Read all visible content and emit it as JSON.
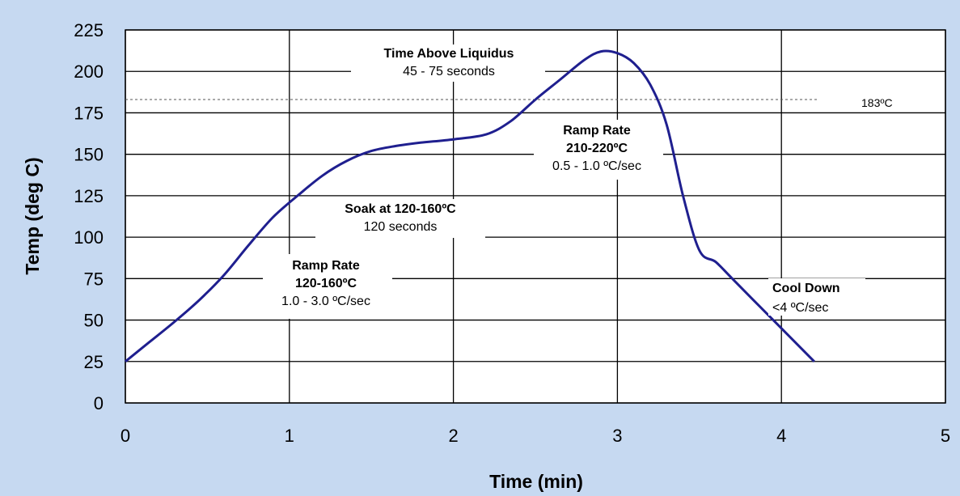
{
  "chart_data": {
    "type": "line",
    "xlabel": "Time (min)",
    "ylabel": "Temp (deg C)",
    "xlim": [
      0,
      5
    ],
    "ylim": [
      0,
      225
    ],
    "xticks": [
      "0",
      "1",
      "2",
      "3",
      "4",
      "5"
    ],
    "yticks": [
      "0",
      "25",
      "50",
      "75",
      "100",
      "125",
      "150",
      "175",
      "200",
      "225"
    ],
    "grid": true,
    "series": [
      {
        "color": "#1f1f8f",
        "x": [
          0,
          0.15,
          0.3,
          0.45,
          0.6,
          0.75,
          0.9,
          1.05,
          1.2,
          1.35,
          1.5,
          1.65,
          1.8,
          2.0,
          2.2,
          2.35,
          2.5,
          2.65,
          2.8,
          2.9,
          3.0,
          3.1,
          3.2,
          3.3,
          3.4,
          3.5,
          3.6,
          3.7,
          3.9,
          4.1,
          4.2
        ],
        "y": [
          25,
          37,
          49,
          62,
          77,
          95,
          112,
          125,
          137,
          146,
          152,
          155,
          157,
          159,
          162,
          170,
          183,
          195,
          207,
          212,
          211,
          205,
          192,
          168,
          125,
          92,
          85,
          75,
          55,
          35,
          25
        ]
      }
    ],
    "reference_line": {
      "y": 183,
      "label": "183ºC"
    },
    "annotations": [
      {
        "id": "tal",
        "lines": [
          "Time Above Liquidus",
          "45 - 75 seconds"
        ]
      },
      {
        "id": "ramp2",
        "lines": [
          "Ramp Rate",
          "210-220ºC",
          "0.5 - 1.0 ºC/sec"
        ]
      },
      {
        "id": "soak",
        "lines": [
          "Soak at 120-160ºC",
          "120 seconds"
        ]
      },
      {
        "id": "ramp1",
        "lines": [
          "Ramp Rate",
          "120-160ºC",
          "1.0 - 3.0 ºC/sec"
        ]
      },
      {
        "id": "cool",
        "lines": [
          "Cool Down",
          "<4 ºC/sec"
        ]
      }
    ]
  }
}
